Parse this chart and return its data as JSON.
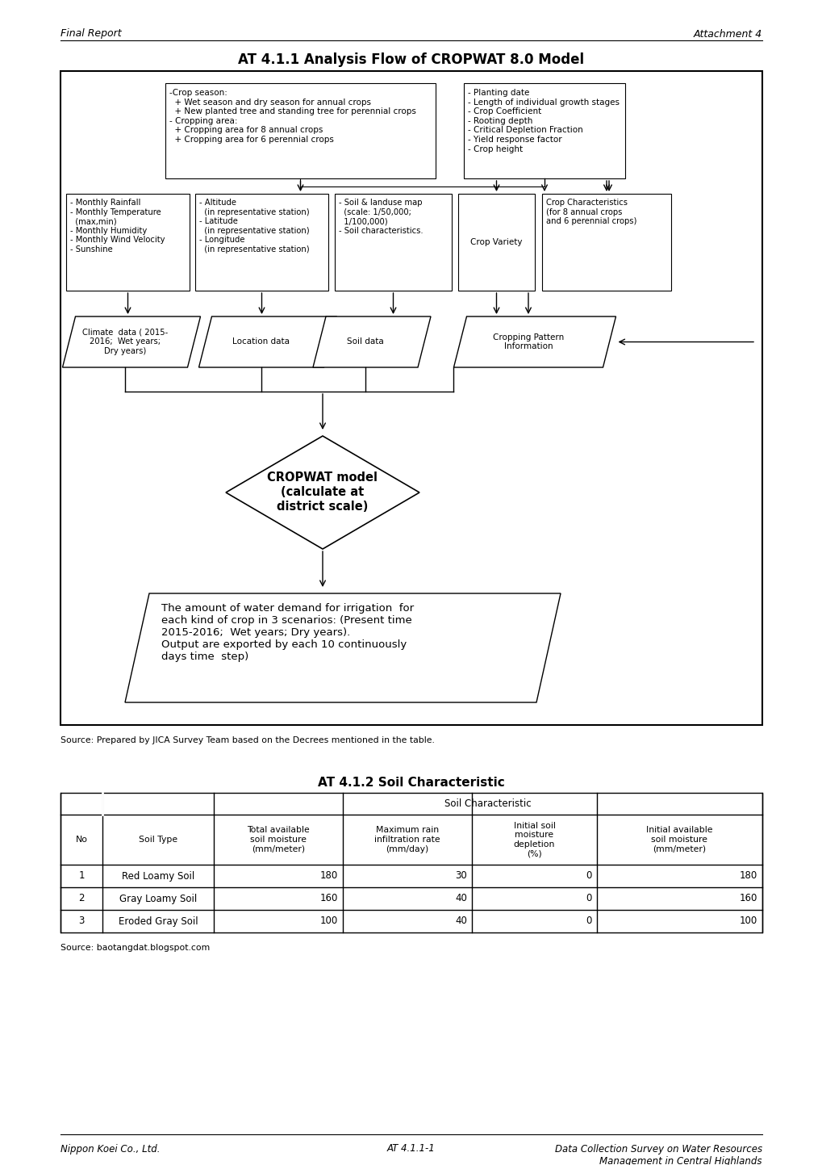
{
  "page_title_left": "Final Report",
  "page_title_right": "Attachment 4",
  "main_title": "AT 4.1.1 Analysis Flow of CROPWAT 8.0 Model",
  "box1_text": "-Crop season:\n  + Wet season and dry season for annual crops\n  + New planted tree and standing tree for perennial crops\n- Cropping area:\n  + Cropping area for 8 annual crops\n  + Cropping area for 6 perennial crops",
  "box2_text": "- Planting date\n- Length of individual growth stages\n- Crop Coefficient\n- Rooting depth\n- Critical Depletion Fraction\n- Yield response factor\n- Crop height",
  "box3_text": "- Monthly Rainfall\n- Monthly Temperature\n  (max,min)\n- Monthly Humidity\n- Monthly Wind Velocity\n- Sunshine",
  "box4_text": "- Altitude\n  (in representative station)\n- Latitude\n  (in representative station)\n- Longitude\n  (in representative station)",
  "box5_text": "- Soil & landuse map\n  (scale: 1/50,000;\n  1/100,000)\n- Soil characteristics.",
  "box6_text": "Crop Variety",
  "box7_text": "Crop Characteristics\n(for 8 annual crops\nand 6 perennial crops)",
  "para1_text": "Climate  data ( 2015-\n2016;  Wet years;\nDry years)",
  "para2_text": "Location data",
  "para3_text": "Soil data",
  "para4_text": "Cropping Pattern\nInformation",
  "diamond_line1": "CROPWAT model",
  "diamond_line2": "(calculate at",
  "diamond_line3": "district scale)",
  "output_text": "The amount of water demand for irrigation  for\neach kind of crop in 3 scenarios: (Present time\n2015-2016;  Wet years; Dry years).\nOutput are exported by each 10 continuously\ndays time  step)",
  "source_text": "Source: Prepared by JICA Survey Team based on the Decrees mentioned in the table.",
  "section2_title": "AT 4.1.2 Soil Characteristic",
  "table_header_main": "Soil Characteristic",
  "table_col_no": "No",
  "table_col_soiltype": "Soil Type",
  "table_col_total": "Total available\nsoil moisture\n(mm/meter)",
  "table_col_maxrain": "Maximum rain\ninfiltration rate\n(mm/day)",
  "table_col_initial_depl": "Initial soil\nmoisture\ndepletion\n(%)",
  "table_col_initial_avail": "Initial available\nsoil moisture\n(mm/meter)",
  "table_rows": [
    [
      1,
      "Red Loamy Soil",
      180,
      30,
      0,
      180
    ],
    [
      2,
      "Gray Loamy Soil",
      160,
      40,
      0,
      160
    ],
    [
      3,
      "Eroded Gray Soil",
      100,
      40,
      0,
      100
    ]
  ],
  "table_source": "Source: baotangdat.blogspot.com",
  "footer_left": "Nippon Koei Co., Ltd.",
  "footer_center": "AT 4.1.1-1",
  "footer_right": "Data Collection Survey on Water Resources\nManagement in Central Highlands",
  "bg_color": "#ffffff"
}
